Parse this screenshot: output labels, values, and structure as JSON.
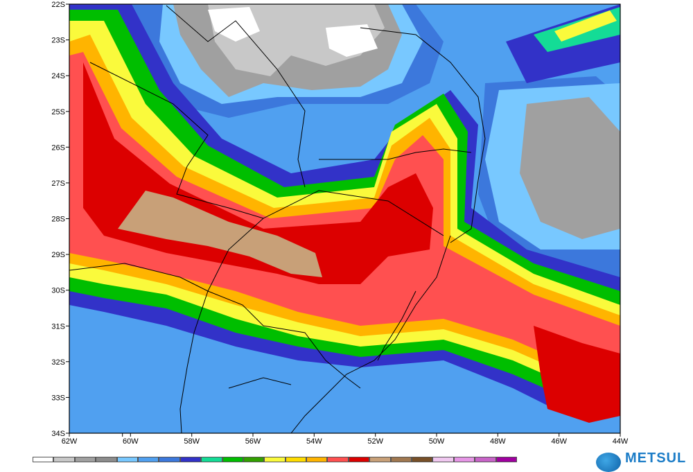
{
  "map": {
    "lat_labels": [
      "22S",
      "23S",
      "24S",
      "25S",
      "26S",
      "27S",
      "28S",
      "29S",
      "30S",
      "31S",
      "32S",
      "33S",
      "34S"
    ],
    "lon_labels": [
      "62W",
      "60W",
      "58W",
      "56W",
      "54W",
      "52W",
      "50W",
      "48W",
      "46W",
      "44W"
    ]
  },
  "colorbar": {
    "colors": [
      "#ffffff",
      "#c8c8c8",
      "#a0a0a0",
      "#8c8c8c",
      "#78c8ff",
      "#50a0f0",
      "#3c78dc",
      "#3232c8",
      "#14dc96",
      "#00be00",
      "#32a000",
      "#fafa3c",
      "#ffdc00",
      "#ffb400",
      "#ff5050",
      "#dc0000",
      "#c8a078",
      "#a07850",
      "#785028",
      "#f0c8f0",
      "#e696e6",
      "#c864c8",
      "#a000a0"
    ]
  },
  "brand": {
    "text": "METSUL"
  },
  "legend_colors": {
    "light_gray": "#c8c8c8",
    "mid_gray": "#a0a0a0",
    "sky": "#78c8ff",
    "blue": "#50a0f0",
    "royal": "#3c78dc",
    "indigo": "#3232c8",
    "teal": "#14dc96",
    "green": "#00be00",
    "yellow": "#fafa3c",
    "orange": "#ffb400",
    "red": "#ff5050",
    "dark_red": "#dc0000",
    "tan": "#c8a078"
  }
}
